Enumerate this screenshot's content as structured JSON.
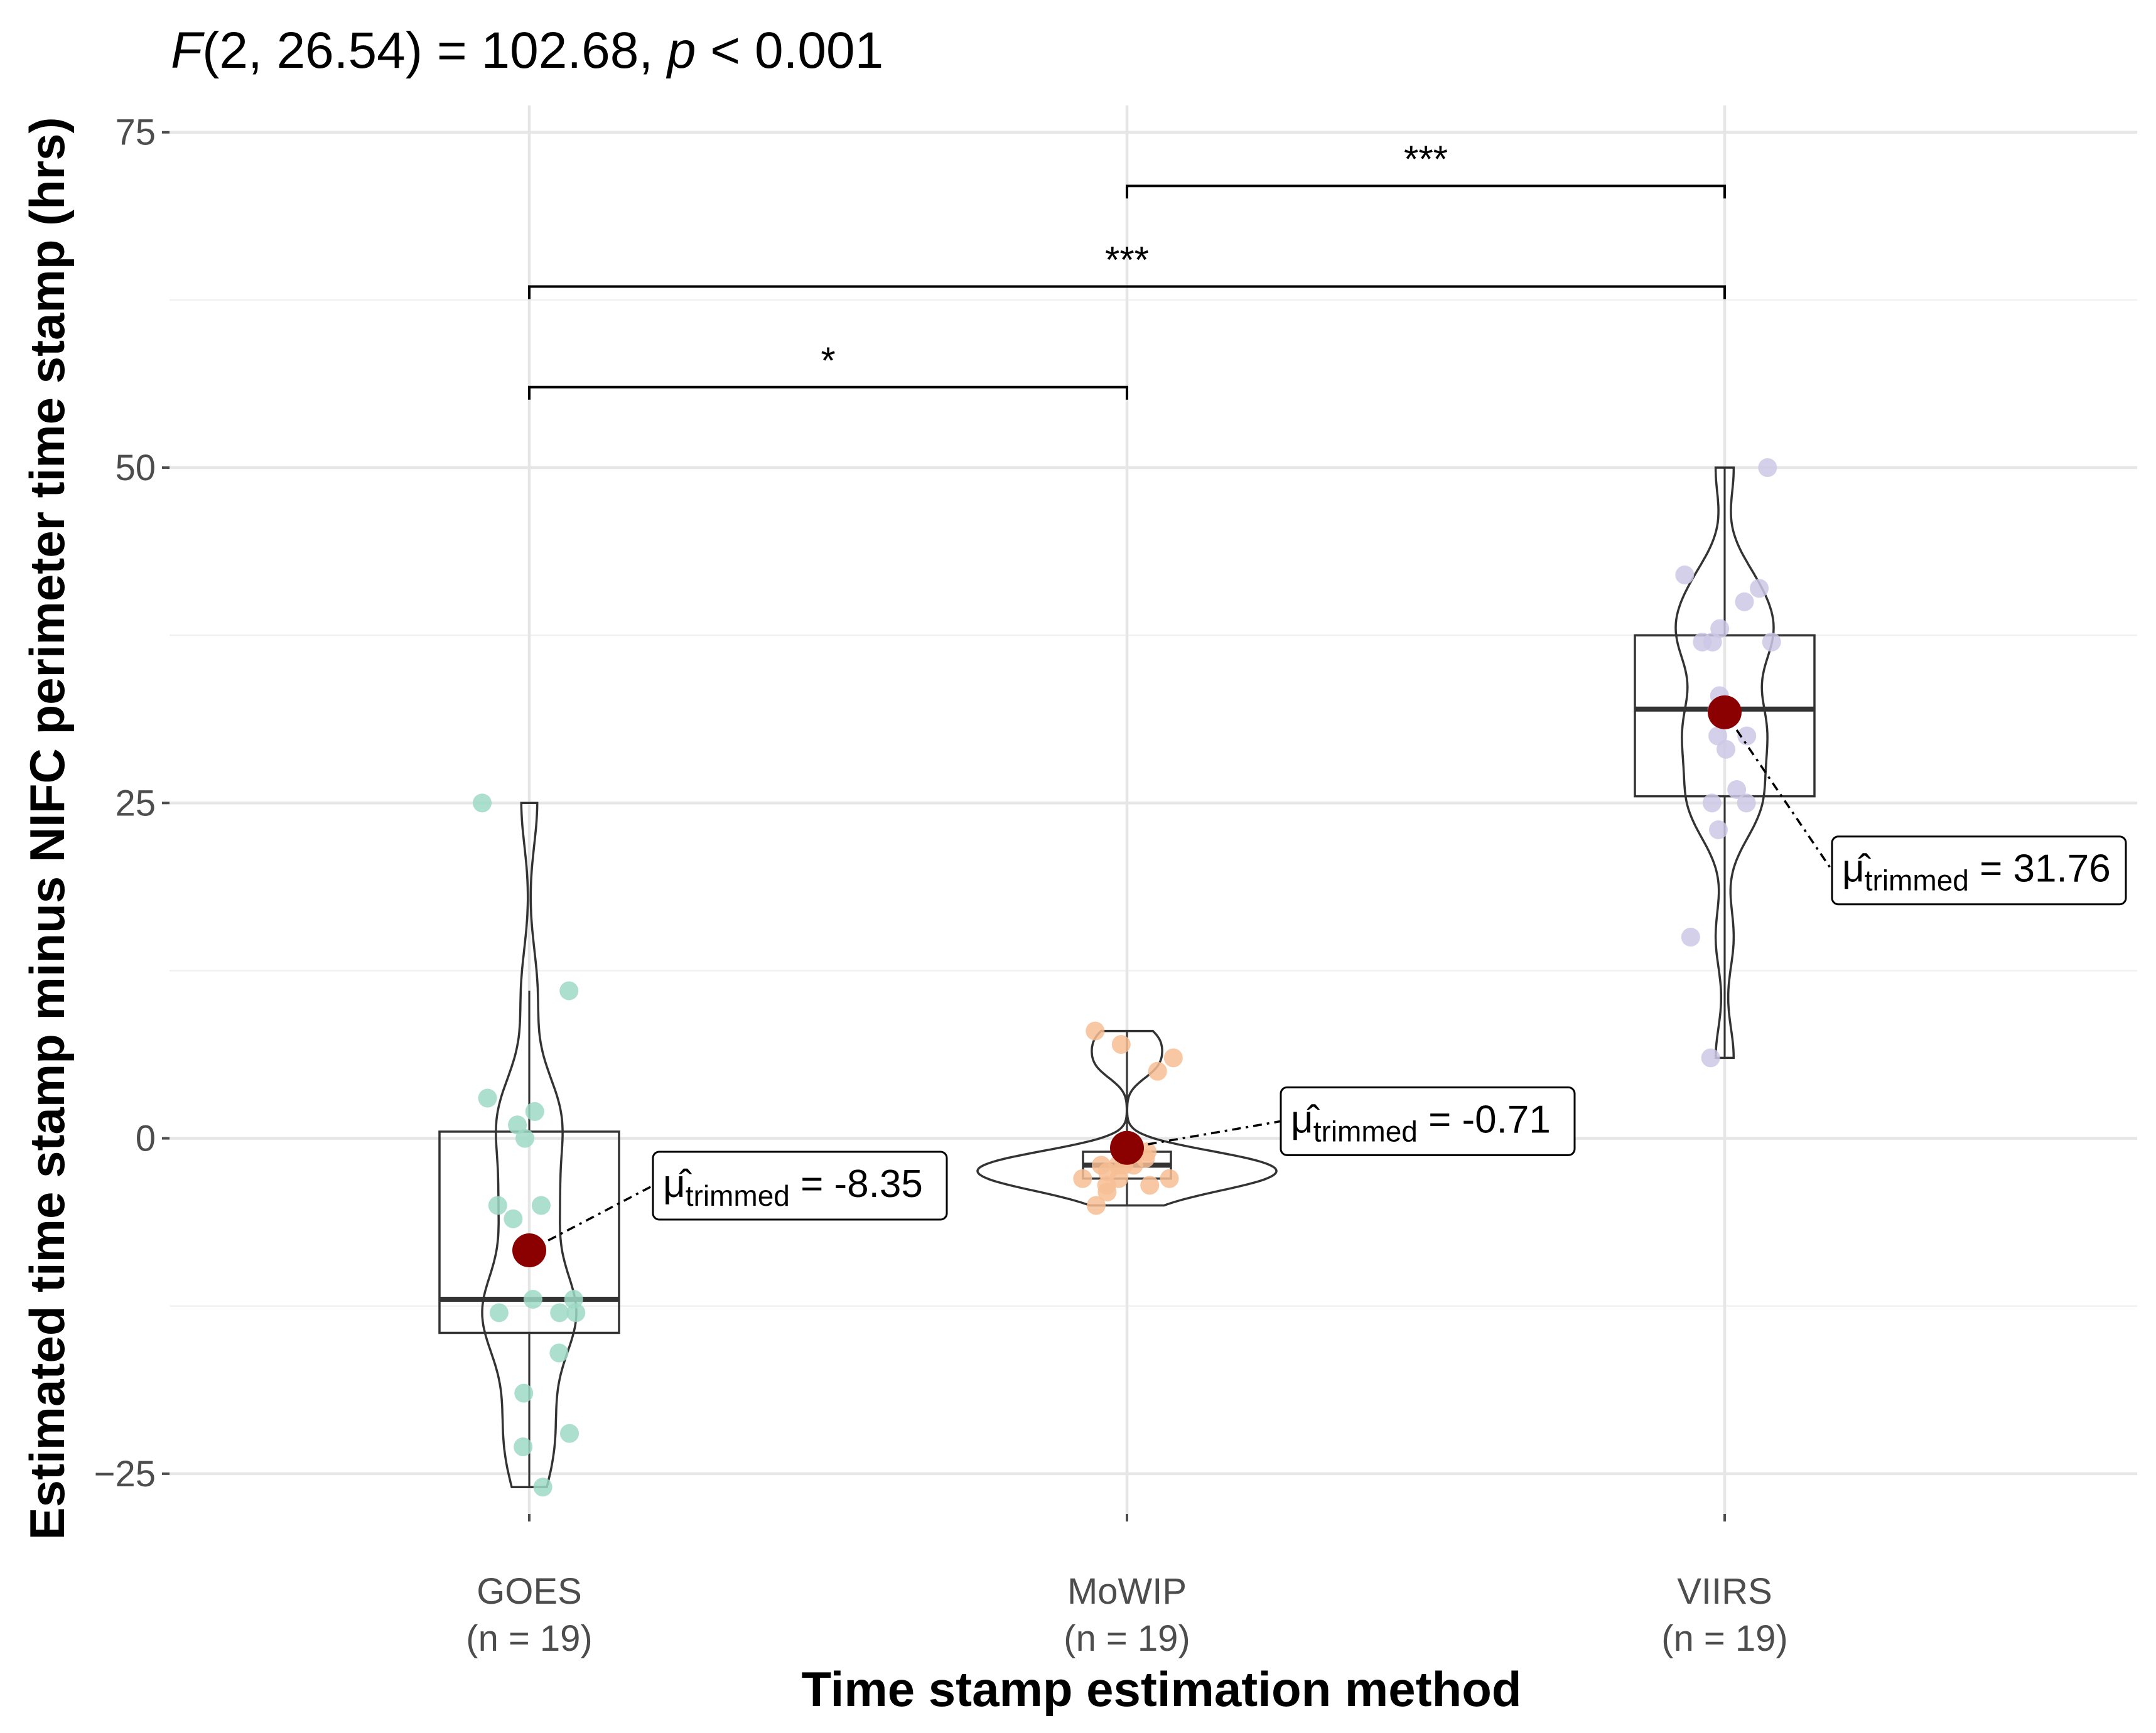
{
  "chart_data": {
    "type": "violin-box",
    "subtitle": {
      "stat_name": "F",
      "df": "(2, 26.54)",
      "equals_value": " = 102.68, ",
      "p_name": "p",
      "p_text": " < 0.001"
    },
    "xlabel": "Time stamp estimation method",
    "ylabel": "Estimated time stamp minus NIFC perimeter time stamp (hrs)",
    "ylim": [
      -28,
      77
    ],
    "yticks": [
      -25,
      0,
      25,
      50,
      75
    ],
    "ytick_labels": [
      "−25",
      "0",
      "25",
      "50",
      "75"
    ],
    "grid": true,
    "categories": [
      "GOES",
      "MoWIP",
      "VIIRS"
    ],
    "category_n_labels": [
      "(n = 19)",
      "(n = 19)",
      "(n = 19)"
    ],
    "colors": {
      "GOES": "#9ed9c4",
      "MoWIP": "#f7be94",
      "VIIRS": "#ccc8e6",
      "mean_point": "#8b0000",
      "outline": "#333333"
    },
    "points": {
      "GOES": [
        25,
        11,
        3,
        2,
        1,
        0,
        -5,
        -5,
        -6,
        -12,
        -12,
        -13,
        -13,
        -13,
        -16,
        -19,
        -22,
        -23,
        -26
      ],
      "MoWIP": [
        8,
        7,
        6,
        5,
        -1,
        -1,
        -1.5,
        -2,
        -2,
        -2,
        -2,
        -2.5,
        -3,
        -3,
        -3,
        -3.5,
        -3.5,
        -4,
        -5
      ],
      "VIIRS": [
        50,
        42,
        41,
        40,
        38,
        37,
        37,
        37,
        33,
        32,
        30,
        30,
        29,
        26,
        25,
        25,
        23,
        15,
        6
      ]
    },
    "boxplots": [
      {
        "group": "GOES",
        "q1": -14.5,
        "median": -12,
        "q3": 0.5,
        "min": -26,
        "max": 11
      },
      {
        "group": "MoWIP",
        "q1": -3,
        "median": -2,
        "q3": -1,
        "min": -5,
        "max": 8
      },
      {
        "group": "VIIRS",
        "q1": 25.5,
        "median": 32,
        "q3": 37.5,
        "min": 6,
        "max": 50
      }
    ],
    "trimmed_means": [
      {
        "group": "GOES",
        "value": -8.35,
        "label_symbol": "μ̂",
        "label_sub": "trimmed",
        "label_value": " = -8.35"
      },
      {
        "group": "MoWIP",
        "value": -0.71,
        "label_symbol": "μ̂",
        "label_sub": "trimmed",
        "label_value": " = -0.71"
      },
      {
        "group": "VIIRS",
        "value": 31.76,
        "label_symbol": "μ̂",
        "label_sub": "trimmed",
        "label_value": " = 31.76"
      }
    ],
    "comparisons": [
      {
        "from": "GOES",
        "to": "MoWIP",
        "label": "*",
        "y": 56
      },
      {
        "from": "GOES",
        "to": "VIIRS",
        "label": "***",
        "y": 63.5
      },
      {
        "from": "MoWIP",
        "to": "VIIRS",
        "label": "***",
        "y": 71
      }
    ]
  }
}
